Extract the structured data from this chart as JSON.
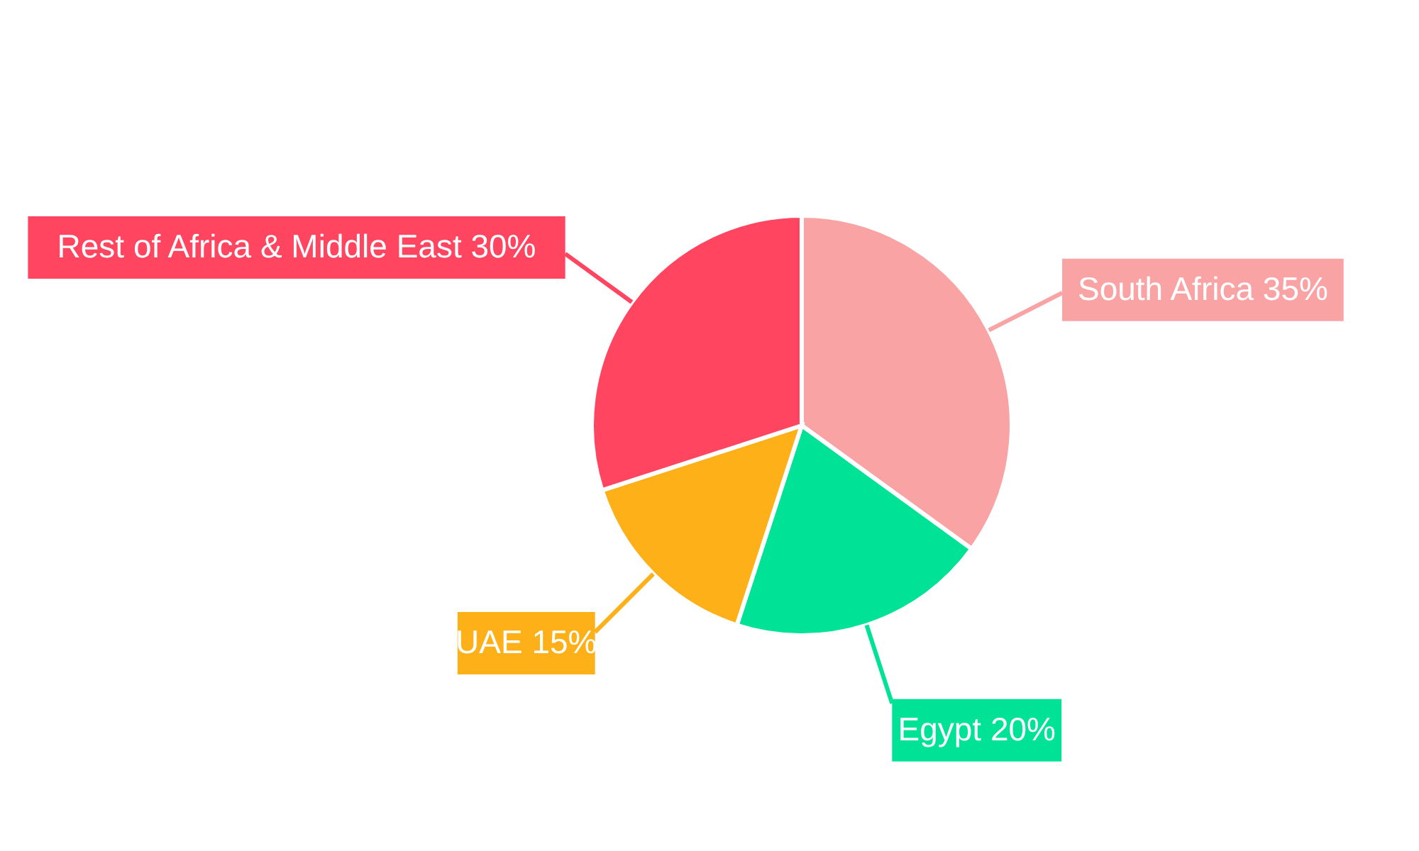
{
  "chart_data": {
    "type": "pie",
    "categories": [
      "South Africa",
      "Egypt",
      "UAE",
      "Rest of Africa & Middle East"
    ],
    "values": [
      35,
      20,
      15,
      30
    ],
    "colors": [
      "#f9a3a4",
      "#00e396",
      "#feb019",
      "#ff4560"
    ],
    "value_labels": [
      "35%",
      "20%",
      "15%",
      "30%"
    ]
  }
}
